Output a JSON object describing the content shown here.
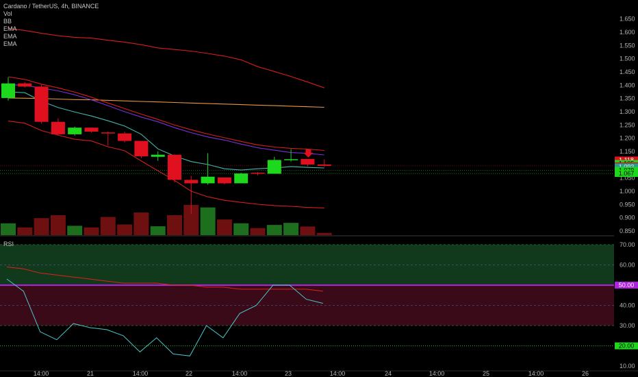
{
  "header": {
    "symbol_line": "Cardano / TetherUS, 4h, BINANCE",
    "indicators": [
      "Vol",
      "BB",
      "EMA",
      "EMA",
      "EMA"
    ]
  },
  "rsi_pane": {
    "title": "RSI"
  },
  "colors": {
    "background": "#000000",
    "bull": "#1ed81e",
    "bear": "#e0101e",
    "vol_bull": "#1d6e1d",
    "vol_bear": "#6e1010",
    "bb_line": "#d61e1e",
    "ema_teal": "#3fb8ae",
    "ema_purple": "#7c2fd6",
    "ema_orange": "#e89a3c",
    "rsi_line": "#4ac9c9",
    "rsi_ma": "#e02020",
    "rsi_mid": "#b020e0",
    "rsi_upper_zone": "#113a1c",
    "rsi_lower_zone": "#3a0a18"
  },
  "chart_data": [
    {
      "type": "candlestick",
      "title": "Cardano / TetherUS, 4h, BINANCE",
      "x_ticks": [
        "14:00",
        "21",
        "14:00",
        "22",
        "14:00",
        "23",
        "14:00",
        "24",
        "14:00",
        "25",
        "14:00",
        "26"
      ],
      "y_ticks": [
        "1.650",
        "1.600",
        "1.550",
        "1.500",
        "1.450",
        "1.400",
        "1.350",
        "1.300",
        "1.250",
        "1.200",
        "1.150",
        "1.100",
        "1.050",
        "1.000",
        "0.950",
        "0.900",
        "0.850"
      ],
      "ylim": [
        0.85,
        1.67
      ],
      "candles": [
        {
          "o": 1.352,
          "h": 1.43,
          "l": 1.342,
          "c": 1.407
        },
        {
          "o": 1.407,
          "h": 1.412,
          "l": 1.392,
          "c": 1.395
        },
        {
          "o": 1.395,
          "h": 1.404,
          "l": 1.255,
          "c": 1.262
        },
        {
          "o": 1.262,
          "h": 1.275,
          "l": 1.21,
          "c": 1.215
        },
        {
          "o": 1.215,
          "h": 1.244,
          "l": 1.21,
          "c": 1.24
        },
        {
          "o": 1.24,
          "h": 1.24,
          "l": 1.222,
          "c": 1.225
        },
        {
          "o": 1.222,
          "h": 1.226,
          "l": 1.172,
          "c": 1.218
        },
        {
          "o": 1.218,
          "h": 1.225,
          "l": 1.185,
          "c": 1.19
        },
        {
          "o": 1.19,
          "h": 1.19,
          "l": 1.125,
          "c": 1.132
        },
        {
          "o": 1.13,
          "h": 1.15,
          "l": 1.115,
          "c": 1.138
        },
        {
          "o": 1.138,
          "h": 1.138,
          "l": 1.033,
          "c": 1.043
        },
        {
          "o": 1.043,
          "h": 1.058,
          "l": 0.915,
          "c": 1.03
        },
        {
          "o": 1.03,
          "h": 1.144,
          "l": 1.025,
          "c": 1.055
        },
        {
          "o": 1.052,
          "h": 1.052,
          "l": 1.026,
          "c": 1.03
        },
        {
          "o": 1.03,
          "h": 1.07,
          "l": 1.03,
          "c": 1.067
        },
        {
          "o": 1.07,
          "h": 1.072,
          "l": 1.06,
          "c": 1.066
        },
        {
          "o": 1.066,
          "h": 1.13,
          "l": 1.066,
          "c": 1.118
        },
        {
          "o": 1.118,
          "h": 1.159,
          "l": 1.112,
          "c": 1.121
        },
        {
          "o": 1.122,
          "h": 1.122,
          "l": 1.094,
          "c": 1.101
        },
        {
          "o": 1.101,
          "h": 1.12,
          "l": 1.092,
          "c": 1.096
        }
      ],
      "volume": [
        {
          "v": 0.52,
          "up": true
        },
        {
          "v": 0.34,
          "up": false
        },
        {
          "v": 0.75,
          "up": false
        },
        {
          "v": 0.88,
          "up": false
        },
        {
          "v": 0.41,
          "up": true
        },
        {
          "v": 0.34,
          "up": false
        },
        {
          "v": 0.8,
          "up": false
        },
        {
          "v": 0.47,
          "up": false
        },
        {
          "v": 1.0,
          "up": false
        },
        {
          "v": 0.39,
          "up": true
        },
        {
          "v": 0.88,
          "up": false
        },
        {
          "v": 1.33,
          "up": false
        },
        {
          "v": 1.22,
          "up": true
        },
        {
          "v": 0.69,
          "up": false
        },
        {
          "v": 0.52,
          "up": true
        },
        {
          "v": 0.31,
          "up": false
        },
        {
          "v": 0.45,
          "up": true
        },
        {
          "v": 0.54,
          "up": true
        },
        {
          "v": 0.38,
          "up": false
        },
        {
          "v": 0.1,
          "up": false
        }
      ],
      "bb_upper": [
        1.614,
        1.607,
        1.596,
        1.587,
        1.581,
        1.578,
        1.57,
        1.563,
        1.553,
        1.541,
        1.535,
        1.529,
        1.52,
        1.51,
        1.496,
        1.47,
        1.452,
        1.433,
        1.412,
        1.39
      ],
      "bb_lower": [
        1.265,
        1.257,
        1.229,
        1.212,
        1.196,
        1.19,
        1.168,
        1.153,
        1.114,
        1.077,
        1.041,
        1.0,
        0.979,
        0.966,
        0.958,
        0.951,
        0.946,
        0.943,
        0.939,
        0.937
      ],
      "ema_red": [
        1.432,
        1.422,
        1.404,
        1.39,
        1.374,
        1.355,
        1.333,
        1.312,
        1.291,
        1.271,
        1.25,
        1.232,
        1.216,
        1.202,
        1.188,
        1.175,
        1.167,
        1.162,
        1.159,
        1.154
      ],
      "ema_purple": [
        1.402,
        1.4,
        1.389,
        1.379,
        1.364,
        1.345,
        1.323,
        1.3,
        1.28,
        1.262,
        1.24,
        1.221,
        1.205,
        1.193,
        1.178,
        1.164,
        1.155,
        1.146,
        1.143,
        1.137
      ],
      "ema_teal": [
        1.375,
        1.372,
        1.34,
        1.316,
        1.299,
        1.284,
        1.266,
        1.246,
        1.215,
        1.16,
        1.133,
        1.112,
        1.101,
        1.085,
        1.08,
        1.085,
        1.088,
        1.093,
        1.09,
        1.088
      ],
      "ema_orange": [
        1.352,
        1.351,
        1.35,
        1.348,
        1.346,
        1.345,
        1.343,
        1.341,
        1.339,
        1.337,
        1.335,
        1.333,
        1.331,
        1.329,
        1.327,
        1.325,
        1.323,
        1.321,
        1.319,
        1.317
      ],
      "price_tags": [
        {
          "value": 1.118,
          "text": "1.118",
          "color": "#e0101e"
        },
        {
          "value": 1.105,
          "text": "1.105",
          "color": "#1ed81e"
        },
        {
          "value": 1.096,
          "text": "1.096",
          "color": "#e0101e"
        },
        {
          "value": 1.092,
          "text": "1.092",
          "color": "#2a9a94"
        },
        {
          "value": 1.079,
          "text": "1.079",
          "color": "#1ed81e"
        },
        {
          "value": 1.067,
          "text": "1.067",
          "color": "#1ed81e"
        }
      ],
      "markers": [
        {
          "candle": 18,
          "type": "arrow-down",
          "color": "#e0101e"
        }
      ]
    },
    {
      "type": "line",
      "title": "RSI",
      "y_ticks": [
        "70.00",
        "60.00",
        "50.00",
        "40.00",
        "30.00",
        "20.00",
        "10.00"
      ],
      "ylim": [
        8,
        72
      ],
      "upper_band": 70,
      "lower_band": 30,
      "mid": 50,
      "dashed_levels": [
        60,
        40
      ],
      "rsi": [
        53,
        47,
        27,
        23,
        31,
        29,
        28,
        25,
        17,
        24,
        16,
        15,
        30,
        24,
        36,
        40,
        50,
        50,
        43,
        41
      ],
      "rsi_ma": [
        59,
        58,
        56,
        55,
        54,
        53,
        52,
        51,
        51,
        51,
        50,
        50,
        49,
        49,
        48,
        48,
        48,
        48,
        48,
        47
      ],
      "rsi_tags": [
        {
          "value": 50,
          "text": "50.00",
          "color": "#b020e0"
        },
        {
          "value": 20,
          "text": "20.00",
          "color": "#1ed81e"
        }
      ]
    }
  ]
}
